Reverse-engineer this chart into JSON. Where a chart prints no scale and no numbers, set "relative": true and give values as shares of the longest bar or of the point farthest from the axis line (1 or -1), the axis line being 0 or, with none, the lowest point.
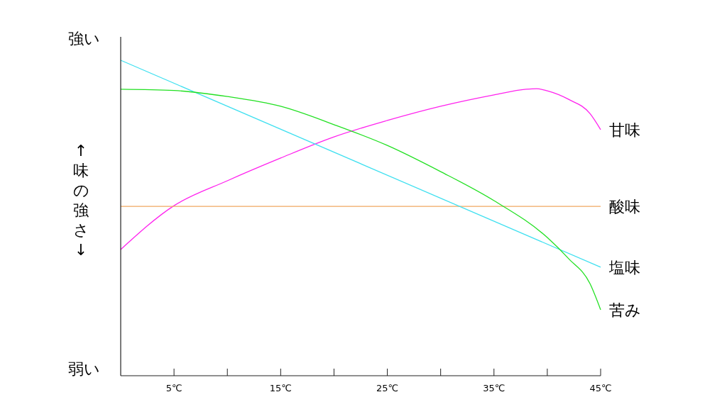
{
  "chart_data": {
    "type": "line",
    "relative": true,
    "ylabel": "↑味の強さ↓",
    "annotations": [
      "強い",
      "弱い"
    ],
    "xlim": [
      0,
      45
    ],
    "xticks": [
      {
        "value": 5,
        "label": "5℃"
      },
      {
        "value": 10,
        "label": null
      },
      {
        "value": 15,
        "label": "15℃"
      },
      {
        "value": 20,
        "label": null
      },
      {
        "value": 25,
        "label": "25℃"
      },
      {
        "value": 30,
        "label": null
      },
      {
        "value": 35,
        "label": "35℃"
      },
      {
        "value": 40,
        "label": null
      },
      {
        "value": 45,
        "label": "45℃"
      }
    ],
    "grid": false,
    "marker": "none",
    "line_style": "solid",
    "series": [
      {
        "name": "甘味",
        "color": "#ff22ee",
        "x": [
          0,
          5,
          10,
          15,
          20,
          25,
          30,
          35,
          38,
          39,
          40,
          42,
          44,
          45
        ],
        "values": [
          0.4,
          0.539,
          0.618,
          0.69,
          0.757,
          0.809,
          0.854,
          0.89,
          0.908,
          0.91,
          0.903,
          0.876,
          0.831,
          0.78
        ]
      },
      {
        "name": "酸味",
        "color": "#f0a860",
        "x": [
          0,
          45
        ],
        "values": [
          0.537,
          0.537
        ]
      },
      {
        "name": "塩味",
        "color": "#40e0f0",
        "x": [
          0,
          45
        ],
        "values": [
          1,
          0.344
        ]
      },
      {
        "name": "苦み",
        "color": "#22e022",
        "x": [
          0,
          5,
          10,
          15,
          20,
          25,
          30,
          35,
          40,
          42,
          44,
          45
        ],
        "values": [
          0.908,
          0.904,
          0.885,
          0.854,
          0.796,
          0.73,
          0.647,
          0.555,
          0.438,
          0.371,
          0.292,
          0.209
        ]
      }
    ]
  }
}
